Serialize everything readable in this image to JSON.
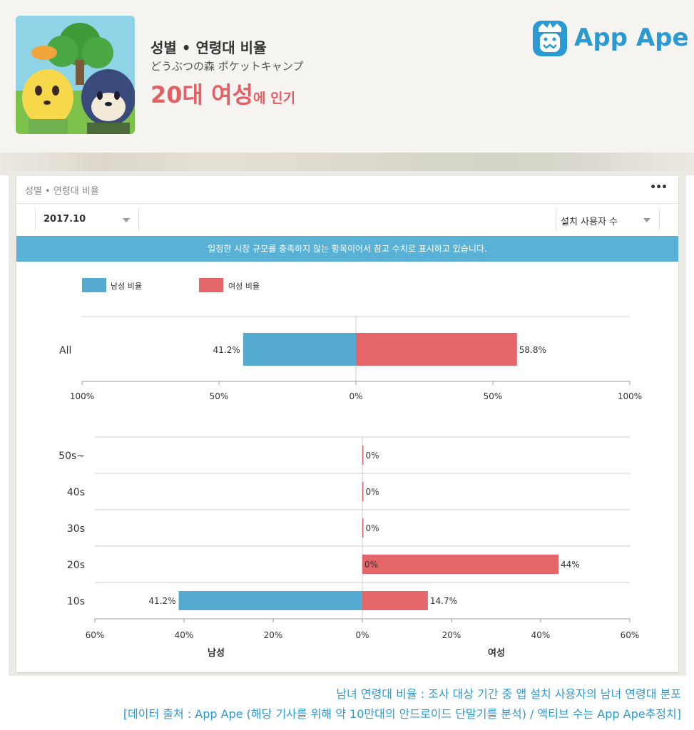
{
  "header": {
    "title": "성별 • 연령대 비율",
    "app_name": "どうぶつの森 ポケットキャンプ",
    "highlight_big": "20대 여성",
    "highlight_small": "에 인기",
    "logo_text": "App Ape"
  },
  "card": {
    "title": "성별 • 연령대 비율",
    "more_label": "•••",
    "period_select": "2017.10",
    "metric_select": "설치 사용자 수",
    "notice": "일정한 시장 규모를 충족하지 않는 항목이어서 참고 수치로 표시하고 있습니다."
  },
  "colors": {
    "male": "#55aacf",
    "female": "#e46668",
    "accent": "#2b9ad3"
  },
  "chart_data": [
    {
      "type": "bar",
      "orientation": "horizontal-diverging",
      "categories": [
        "All"
      ],
      "series": [
        {
          "name": "남성 비율",
          "values": [
            41.2
          ],
          "labels": [
            "41.2%"
          ]
        },
        {
          "name": "여성 비율",
          "values": [
            58.8
          ],
          "labels": [
            "58.8%"
          ]
        }
      ],
      "xlim": [
        -100,
        100
      ],
      "xticks": [
        "100%",
        "50%",
        "0%",
        "50%",
        "100%"
      ],
      "legend": "top-left",
      "grid": true
    },
    {
      "type": "bar",
      "orientation": "horizontal-diverging",
      "categories": [
        "50s~",
        "40s",
        "30s",
        "20s",
        "10s"
      ],
      "series": [
        {
          "name": "남성 비율",
          "values": [
            0,
            0,
            0,
            0,
            41.2
          ],
          "labels": [
            "",
            "",
            "",
            "",
            "41.2%"
          ]
        },
        {
          "name": "여성 비율",
          "values": [
            0,
            0,
            0,
            44,
            14.7
          ],
          "labels": [
            "0%",
            "0%",
            "0%",
            "44%",
            "14.7%"
          ],
          "inner_labels": [
            "",
            "",
            "",
            "0%",
            ""
          ]
        }
      ],
      "xlim": [
        -60,
        60
      ],
      "xticks": [
        "60%",
        "40%",
        "20%",
        "0%",
        "20%",
        "40%",
        "60%"
      ],
      "xlabel_left": "남성",
      "xlabel_right": "여성",
      "grid": true
    }
  ],
  "footer": {
    "line1": "남녀 연령대 비율 : 조사 대상 기간 중 앱 설치 사용자의 남녀 연령대 분포",
    "line2": "[데이터 출처 : App Ape (해당 기사를 위해 약 10만대의 안드로이드 단말기를 분석) / 액티브 수는 App Ape추정치]"
  }
}
